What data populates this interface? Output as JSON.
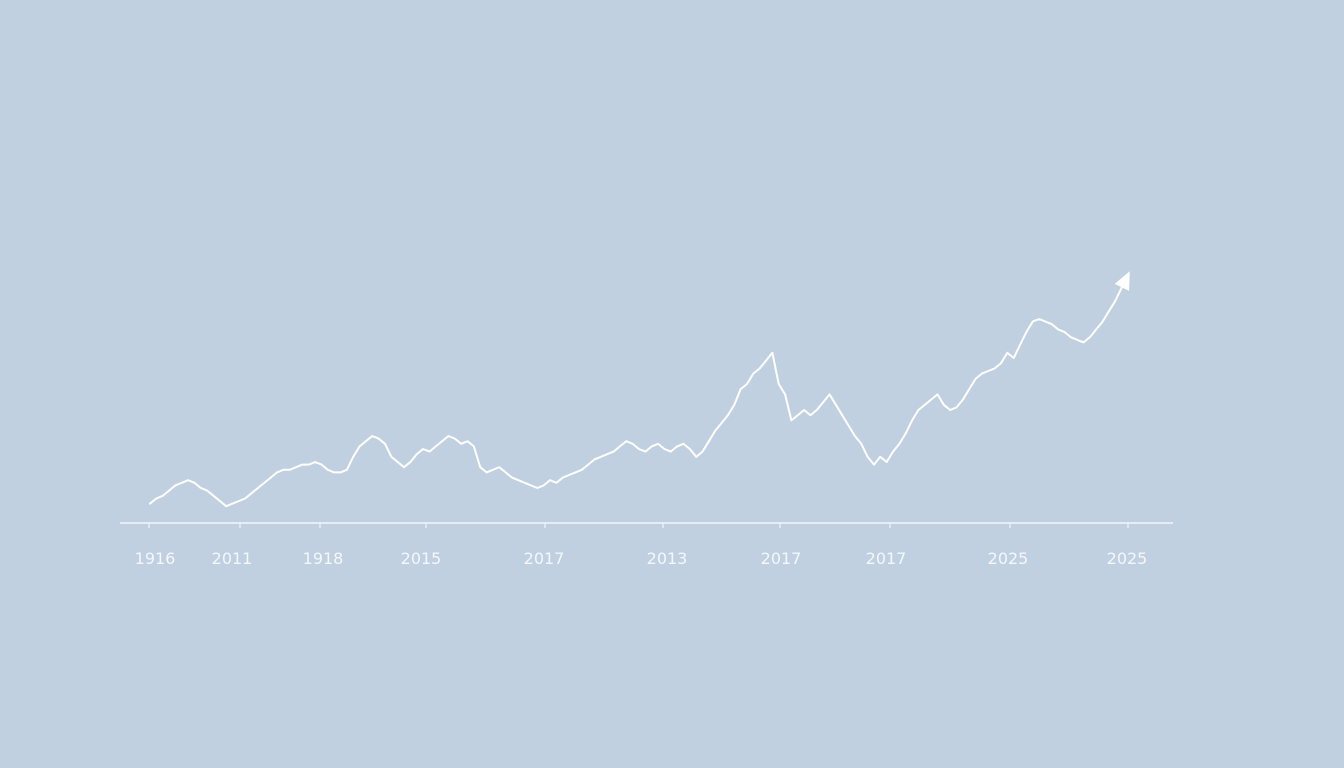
{
  "chart_data": {
    "type": "line",
    "title": "",
    "xlabel": "",
    "ylabel": "",
    "grid": false,
    "legend": "none",
    "line_color": "#ffffff",
    "background_color": "#c0d0e1",
    "end_marker": "arrow-icon",
    "x_tick_labels": [
      "1916",
      "2011",
      "1918",
      "2015",
      "2017",
      "2013",
      "2017",
      "2017",
      "2025",
      "2025"
    ],
    "ylim": [
      0,
      100
    ],
    "series": [
      {
        "values": [
          4,
          6,
          7,
          9,
          11,
          12,
          13,
          12,
          10,
          9,
          7,
          5,
          3,
          4,
          5,
          6,
          8,
          10,
          12,
          14,
          16,
          17,
          17,
          18,
          19,
          19,
          20,
          19,
          17,
          16,
          16,
          17,
          22,
          26,
          28,
          30,
          29,
          27,
          22,
          20,
          18,
          20,
          23,
          25,
          24,
          26,
          28,
          30,
          29,
          27,
          28,
          26,
          18,
          16,
          17,
          18,
          16,
          14,
          13,
          12,
          11,
          10,
          11,
          13,
          12,
          14,
          15,
          16,
          17,
          19,
          21,
          22,
          23,
          24,
          26,
          28,
          27,
          25,
          24,
          26,
          27,
          25,
          24,
          26,
          27,
          25,
          22,
          24,
          28,
          32,
          35,
          38,
          42,
          48,
          50,
          54,
          56,
          59,
          62,
          50,
          46,
          36,
          38,
          40,
          38,
          40,
          43,
          46,
          42,
          38,
          34,
          30,
          27,
          22,
          19,
          22,
          20,
          24,
          27,
          31,
          36,
          40,
          42,
          44,
          46,
          42,
          40,
          41,
          44,
          48,
          52,
          54,
          55,
          56,
          58,
          62,
          60,
          65,
          70,
          74,
          75,
          74,
          73,
          71,
          70,
          68,
          67,
          66,
          68,
          71,
          74,
          78,
          82,
          87,
          92
        ]
      }
    ]
  }
}
